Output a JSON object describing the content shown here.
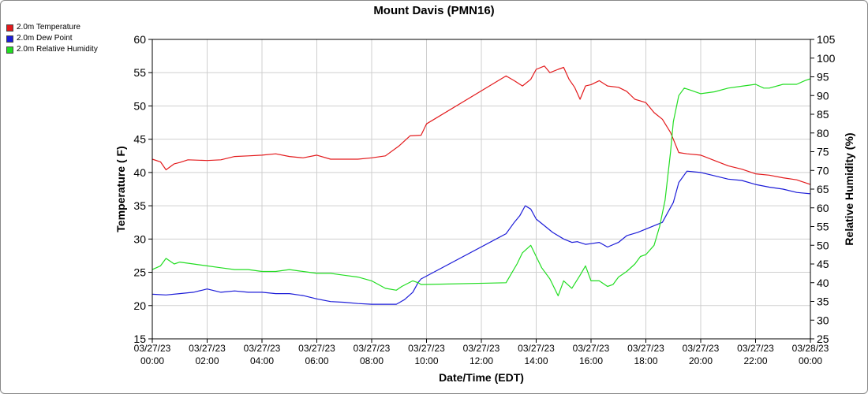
{
  "chart_data": {
    "type": "line",
    "title": "Mount Davis (PMN16)",
    "xlabel": "Date/Time (EDT)",
    "ylabel_left": "Temperature ( F)",
    "ylabel_right": "Relative Humidity (%)",
    "y_left_lim": [
      15,
      60
    ],
    "y_left_ticks": [
      15,
      20,
      25,
      30,
      35,
      40,
      45,
      50,
      55,
      60
    ],
    "y_right_lim": [
      25,
      105
    ],
    "y_right_ticks": [
      25,
      30,
      35,
      40,
      45,
      50,
      55,
      60,
      65,
      70,
      75,
      80,
      85,
      90,
      95,
      100,
      105
    ],
    "x_lim": [
      0,
      24
    ],
    "x_ticks": [
      {
        "hour": 0,
        "date": "03/27/23",
        "time": "00:00"
      },
      {
        "hour": 2,
        "date": "03/27/23",
        "time": "02:00"
      },
      {
        "hour": 4,
        "date": "03/27/23",
        "time": "04:00"
      },
      {
        "hour": 6,
        "date": "03/27/23",
        "time": "06:00"
      },
      {
        "hour": 8,
        "date": "03/27/23",
        "time": "08:00"
      },
      {
        "hour": 10,
        "date": "03/27/23",
        "time": "10:00"
      },
      {
        "hour": 12,
        "date": "03/27/23",
        "time": "12:00"
      },
      {
        "hour": 14,
        "date": "03/27/23",
        "time": "14:00"
      },
      {
        "hour": 16,
        "date": "03/27/23",
        "time": "16:00"
      },
      {
        "hour": 18,
        "date": "03/27/23",
        "time": "18:00"
      },
      {
        "hour": 20,
        "date": "03/27/23",
        "time": "20:00"
      },
      {
        "hour": 22,
        "date": "03/27/23",
        "time": "22:00"
      },
      {
        "hour": 24,
        "date": "03/28/23",
        "time": "00:00"
      }
    ],
    "grid": true,
    "legend_position": "top-left outside",
    "series": [
      {
        "name": "2.0m Temperature",
        "color": "#e31a1c",
        "axis": "left",
        "x": [
          0,
          0.3,
          0.5,
          0.8,
          1.0,
          1.3,
          2.0,
          2.5,
          3.0,
          3.5,
          4.0,
          4.5,
          5.0,
          5.5,
          6.0,
          6.5,
          7.0,
          7.5,
          8.0,
          8.5,
          9.0,
          9.4,
          9.8,
          10.0,
          12.9,
          13.2,
          13.5,
          13.8,
          14.0,
          14.3,
          14.5,
          14.8,
          15.0,
          15.2,
          15.4,
          15.6,
          15.8,
          16.0,
          16.3,
          16.6,
          17.0,
          17.3,
          17.6,
          18.0,
          18.3,
          18.6,
          18.9,
          19.0,
          19.2,
          19.5,
          20.0,
          20.5,
          21.0,
          21.5,
          22.0,
          22.5,
          23.0,
          23.5,
          24.0
        ],
        "y": [
          42.0,
          41.6,
          40.4,
          41.3,
          41.5,
          41.9,
          41.8,
          41.9,
          42.4,
          42.5,
          42.6,
          42.8,
          42.4,
          42.2,
          42.6,
          42.0,
          42.0,
          42.0,
          42.2,
          42.5,
          44.0,
          45.5,
          45.6,
          47.3,
          54.5,
          53.8,
          53.0,
          54.0,
          55.5,
          56.0,
          55.0,
          55.5,
          55.8,
          54.0,
          52.8,
          51.0,
          53.0,
          53.2,
          53.8,
          53.0,
          52.8,
          52.2,
          51.0,
          50.5,
          49.0,
          48.0,
          46.0,
          45.0,
          43.0,
          42.8,
          42.6,
          41.8,
          41.0,
          40.5,
          39.8,
          39.6,
          39.2,
          38.9,
          38.2
        ]
      },
      {
        "name": "2.0m Dew Point",
        "color": "#1c1cd8",
        "axis": "left",
        "x": [
          0,
          0.5,
          1.0,
          1.5,
          1.8,
          2.0,
          2.5,
          3.0,
          3.5,
          4.0,
          4.5,
          5.0,
          5.5,
          6.0,
          6.5,
          7.0,
          7.5,
          8.0,
          8.5,
          8.9,
          9.2,
          9.5,
          9.7,
          9.8,
          12.9,
          13.2,
          13.4,
          13.6,
          13.8,
          14.0,
          14.3,
          14.6,
          15.0,
          15.3,
          15.5,
          15.8,
          16.0,
          16.3,
          16.6,
          17.0,
          17.3,
          17.7,
          18.0,
          18.3,
          18.6,
          18.8,
          19.0,
          19.2,
          19.5,
          20.0,
          20.5,
          21.0,
          21.5,
          22.0,
          22.5,
          23.0,
          23.5,
          24.0
        ],
        "y": [
          21.7,
          21.6,
          21.8,
          22.0,
          22.3,
          22.5,
          22.0,
          22.2,
          22.0,
          22.0,
          21.8,
          21.8,
          21.5,
          21.0,
          20.6,
          20.5,
          20.3,
          20.2,
          20.2,
          20.2,
          20.9,
          22.0,
          23.5,
          24.0,
          30.8,
          32.5,
          33.5,
          35.0,
          34.5,
          33.0,
          32.0,
          31.0,
          30.0,
          29.5,
          29.6,
          29.2,
          29.3,
          29.5,
          28.8,
          29.5,
          30.5,
          31.0,
          31.5,
          32.0,
          32.5,
          34.0,
          35.5,
          38.5,
          40.2,
          40.0,
          39.5,
          39.0,
          38.8,
          38.2,
          37.8,
          37.5,
          37.0,
          36.8
        ]
      },
      {
        "name": "2.0m Relative Humidity",
        "color": "#22dd22",
        "axis": "right",
        "x": [
          0,
          0.3,
          0.5,
          0.8,
          1.0,
          1.5,
          2.0,
          2.5,
          3.0,
          3.5,
          4.0,
          4.5,
          5.0,
          5.5,
          6.0,
          6.5,
          7.0,
          7.5,
          8.0,
          8.5,
          8.9,
          9.1,
          9.5,
          9.7,
          9.8,
          12.9,
          13.1,
          13.3,
          13.5,
          13.8,
          14.0,
          14.2,
          14.5,
          14.8,
          15.0,
          15.3,
          15.6,
          15.8,
          16.0,
          16.3,
          16.6,
          16.8,
          17.0,
          17.3,
          17.6,
          17.8,
          18.0,
          18.3,
          18.5,
          18.7,
          18.9,
          19.0,
          19.2,
          19.4,
          19.6,
          20.0,
          20.5,
          21.0,
          21.5,
          22.0,
          22.3,
          22.5,
          23.0,
          23.5,
          23.8,
          24.0
        ],
        "y": [
          43.5,
          44.5,
          46.5,
          45.0,
          45.5,
          45.0,
          44.5,
          44.0,
          43.5,
          43.5,
          43.0,
          43.0,
          43.5,
          43.0,
          42.5,
          42.5,
          42.0,
          41.5,
          40.5,
          38.5,
          38.0,
          39.0,
          40.5,
          40.0,
          39.5,
          40.0,
          42.5,
          45.0,
          48.0,
          50.0,
          47.0,
          44.0,
          41.0,
          36.5,
          40.5,
          38.5,
          42.0,
          44.5,
          40.5,
          40.5,
          39.0,
          39.5,
          41.5,
          43.0,
          45.0,
          47.0,
          47.5,
          50.0,
          55.0,
          62.0,
          75.0,
          83.0,
          90.0,
          92.0,
          91.5,
          90.5,
          91.0,
          92.0,
          92.5,
          93.0,
          92.0,
          92.0,
          93.0,
          93.0,
          94.0,
          94.5
        ]
      }
    ]
  }
}
